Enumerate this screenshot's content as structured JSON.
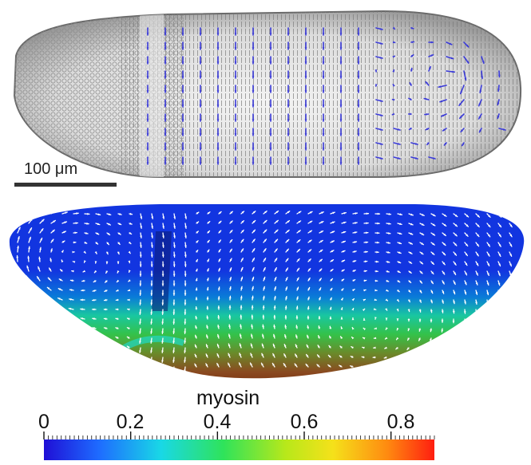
{
  "scale_bar": {
    "label": "100 μm"
  },
  "colorbar": {
    "title": "myosin",
    "tick_labels": [
      "0",
      "0.2",
      "0.4",
      "0.6",
      "0.8"
    ],
    "range": [
      0,
      0.9
    ],
    "colormap": [
      "#1f0fd6",
      "#1e6bff",
      "#19d8e6",
      "#2fe35a",
      "#b8e81a",
      "#f5e11a",
      "#ff8a10",
      "#ff1e10"
    ]
  },
  "colors": {
    "top_arrows": "#3a3ad8",
    "bottom_arrows": "#ffffff",
    "bottom_base": "#1235e0"
  }
}
